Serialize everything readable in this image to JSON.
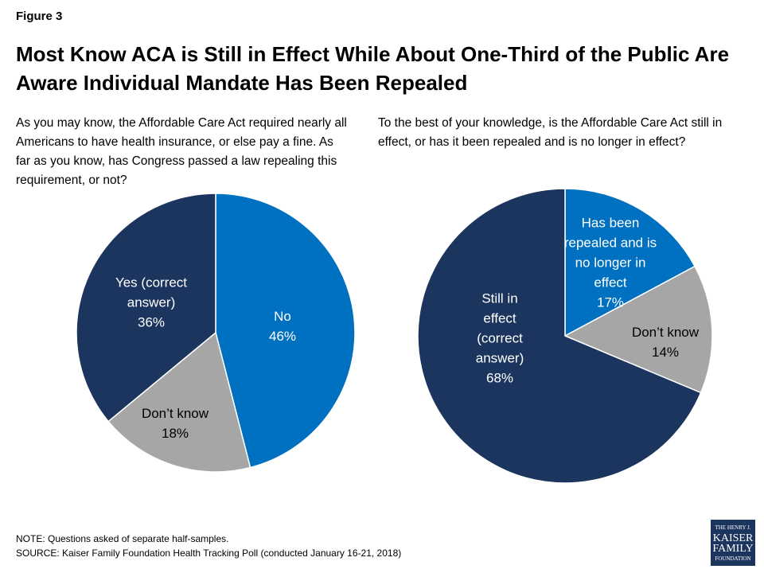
{
  "figure_label": "Figure 3",
  "title": "Most Know ACA is Still in Effect While About One-Third of the Public Are Aware Individual Mandate Has Been Repealed",
  "chart_data": [
    {
      "type": "pie",
      "subtitle": "As you may know, the Affordable Care Act required nearly all Americans to have health insurance, or else pay a fine. As far as you know, has Congress passed a law repealing this requirement, or not?",
      "categories": [
        "No",
        "Don’t know",
        "Yes (correct answer)"
      ],
      "values": [
        46,
        18,
        36
      ],
      "value_labels": [
        "46%",
        "18%",
        "36%"
      ],
      "colors": [
        "#0070c0",
        "#a6a6a6",
        "#1c355e"
      ]
    },
    {
      "type": "pie",
      "subtitle": "To the best of your knowledge, is the Affordable Care Act still in effect, or has it been repealed and is no longer in effect?",
      "categories": [
        "Has been repealed and is no longer in effect",
        "Don’t know",
        "Still in effect (correct answer)"
      ],
      "values": [
        17,
        14,
        68
      ],
      "value_labels": [
        "17%",
        "14%",
        "68%"
      ],
      "colors": [
        "#0070c0",
        "#a6a6a6",
        "#1c355e"
      ]
    }
  ],
  "note": "NOTE: Questions asked of separate half-samples.",
  "source": "SOURCE: Kaiser Family Foundation Health Tracking Poll (conducted January 16-21, 2018)",
  "logo": [
    "THE HENRY J.",
    "KAISER",
    "FAMILY",
    "FOUNDATION"
  ]
}
